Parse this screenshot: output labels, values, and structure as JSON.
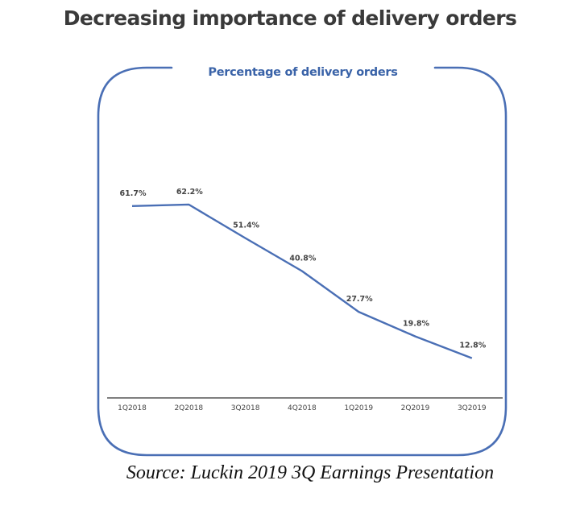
{
  "page": {
    "title": "Decreasing importance of delivery orders",
    "source": "Source: Luckin 2019 3Q Earnings Presentation"
  },
  "chart_data": {
    "type": "line",
    "title": "Percentage of delivery orders",
    "xlabel": "",
    "ylabel": "",
    "categories": [
      "1Q2018",
      "2Q2018",
      "3Q2018",
      "4Q2018",
      "1Q2019",
      "2Q2019",
      "3Q2019"
    ],
    "series": [
      {
        "values": [
          61.7,
          62.2,
          51.4,
          40.8,
          27.7,
          19.8,
          12.8
        ]
      }
    ],
    "data_labels": [
      "61.7%",
      "62.2%",
      "51.4%",
      "40.8%",
      "27.7%",
      "19.8%",
      "12.8%"
    ],
    "ylim": [
      0,
      100
    ],
    "grid": false,
    "legend": "none",
    "colors": {
      "line": "#4a6fb5",
      "frame": "#4a6fb5",
      "title": "#3a63a8",
      "axis": "#333333"
    }
  }
}
